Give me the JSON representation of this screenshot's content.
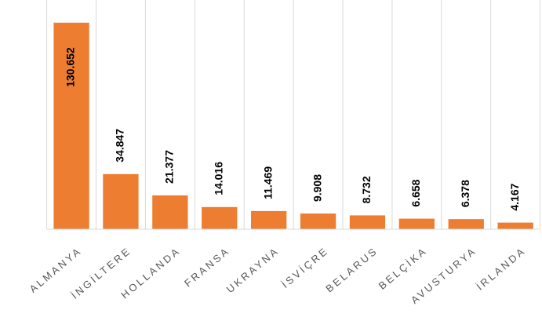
{
  "chart_data": {
    "type": "bar",
    "categories": [
      "ALMANYA",
      "İNGİLTERE",
      "HOLLANDA",
      "FRANSA",
      "UKRAYNA",
      "İSVİÇRE",
      "BELARUS",
      "BELÇİKA",
      "AVUSTURYA",
      "İRLANDA"
    ],
    "values": [
      130652,
      34847,
      21377,
      14016,
      11469,
      9908,
      8732,
      6658,
      6378,
      4167
    ],
    "value_labels": [
      "130.652",
      "34.847",
      "21.377",
      "14.016",
      "11.469",
      "9.908",
      "8.732",
      "6.658",
      "6.378",
      "4.167"
    ],
    "color": "#ed7d31",
    "ylim": [
      0,
      145000
    ],
    "grid": true
  }
}
